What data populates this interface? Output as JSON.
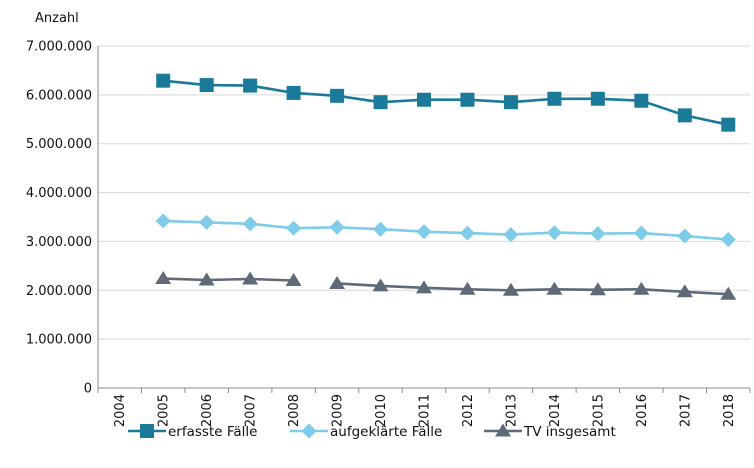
{
  "chart_data": {
    "type": "line",
    "title": "",
    "ylabel": "Anzahl",
    "xlabel": "",
    "ylim": [
      0,
      7000000
    ],
    "y_ticks": [
      {
        "value": 0,
        "label": "0"
      },
      {
        "value": 1000000,
        "label": "1.000.000"
      },
      {
        "value": 2000000,
        "label": "2.000.000"
      },
      {
        "value": 3000000,
        "label": "3.000.000"
      },
      {
        "value": 4000000,
        "label": "4.000.000"
      },
      {
        "value": 5000000,
        "label": "5.000.000"
      },
      {
        "value": 6000000,
        "label": "6.000.000"
      },
      {
        "value": 7000000,
        "label": "7.000.000"
      }
    ],
    "categories": [
      "2004",
      "2005",
      "2006",
      "2007",
      "2008",
      "2009",
      "2010",
      "2011",
      "2012",
      "2013",
      "2014",
      "2015",
      "2016",
      "2017",
      "2018"
    ],
    "grid": "horizontal",
    "legend_position": "bottom",
    "series": [
      {
        "name": "erfasste Fälle",
        "color": "#1b7a99",
        "marker": "square",
        "values": [
          null,
          6290000,
          6200000,
          6190000,
          6040000,
          5980000,
          5850000,
          5900000,
          5900000,
          5850000,
          5920000,
          5920000,
          5880000,
          5580000,
          5390000
        ]
      },
      {
        "name": "aufgeklärte Fälle",
        "color": "#7ecbea",
        "marker": "diamond",
        "values": [
          null,
          3420000,
          3390000,
          3360000,
          3270000,
          3290000,
          3250000,
          3200000,
          3170000,
          3140000,
          3180000,
          3160000,
          3170000,
          3110000,
          3040000
        ]
      },
      {
        "name": "TV insgesamt",
        "color": "#5e6a78",
        "marker": "triangle",
        "values": [
          null,
          2240000,
          2210000,
          2230000,
          2200000,
          2140000,
          2090000,
          2050000,
          2020000,
          2000000,
          2020000,
          2010000,
          2020000,
          1970000,
          1920000
        ],
        "breaks_after": [
          "2008"
        ]
      }
    ]
  }
}
